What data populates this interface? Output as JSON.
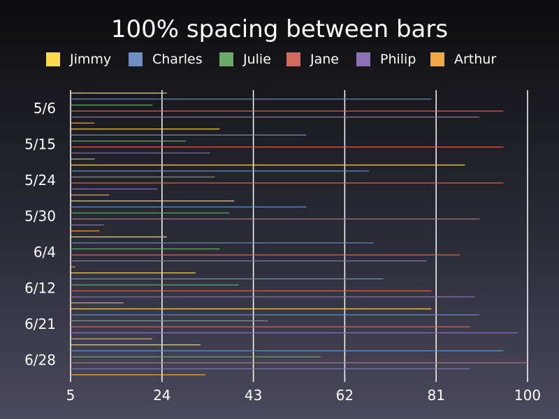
{
  "chart_data": {
    "type": "bar",
    "orientation": "horizontal",
    "title": "100% spacing between bars",
    "xlabel": "",
    "ylabel": "",
    "xlim": [
      5,
      100
    ],
    "xticks": [
      "5",
      "24",
      "43",
      "62",
      "81",
      "100"
    ],
    "grid": "vertical lines",
    "legend": "top",
    "categories": [
      "5/6",
      "5/15",
      "5/24",
      "5/30",
      "6/4",
      "6/12",
      "6/21",
      "6/28"
    ],
    "series": [
      {
        "name": "Jimmy",
        "color": "#fdd94e",
        "values": [
          25,
          36,
          87,
          39,
          25,
          31,
          80,
          32
        ]
      },
      {
        "name": "Charles",
        "color": "#6d8fc4",
        "values": [
          80,
          54,
          67,
          54,
          68,
          70,
          90,
          95
        ]
      },
      {
        "name": "Julie",
        "color": "#6aab6a",
        "values": [
          22,
          29,
          35,
          38,
          36,
          40,
          46,
          57
        ]
      },
      {
        "name": "Jane",
        "color": "#d4695e",
        "values": [
          95,
          95,
          95,
          90,
          86,
          80,
          88,
          100
        ]
      },
      {
        "name": "Philip",
        "color": "#8b72b8",
        "values": [
          90,
          34,
          23,
          12,
          79,
          89,
          98,
          88
        ]
      },
      {
        "name": "Arthur",
        "color": "#f0a845",
        "values": [
          10,
          10,
          13,
          11,
          6,
          16,
          22,
          33
        ]
      }
    ]
  }
}
